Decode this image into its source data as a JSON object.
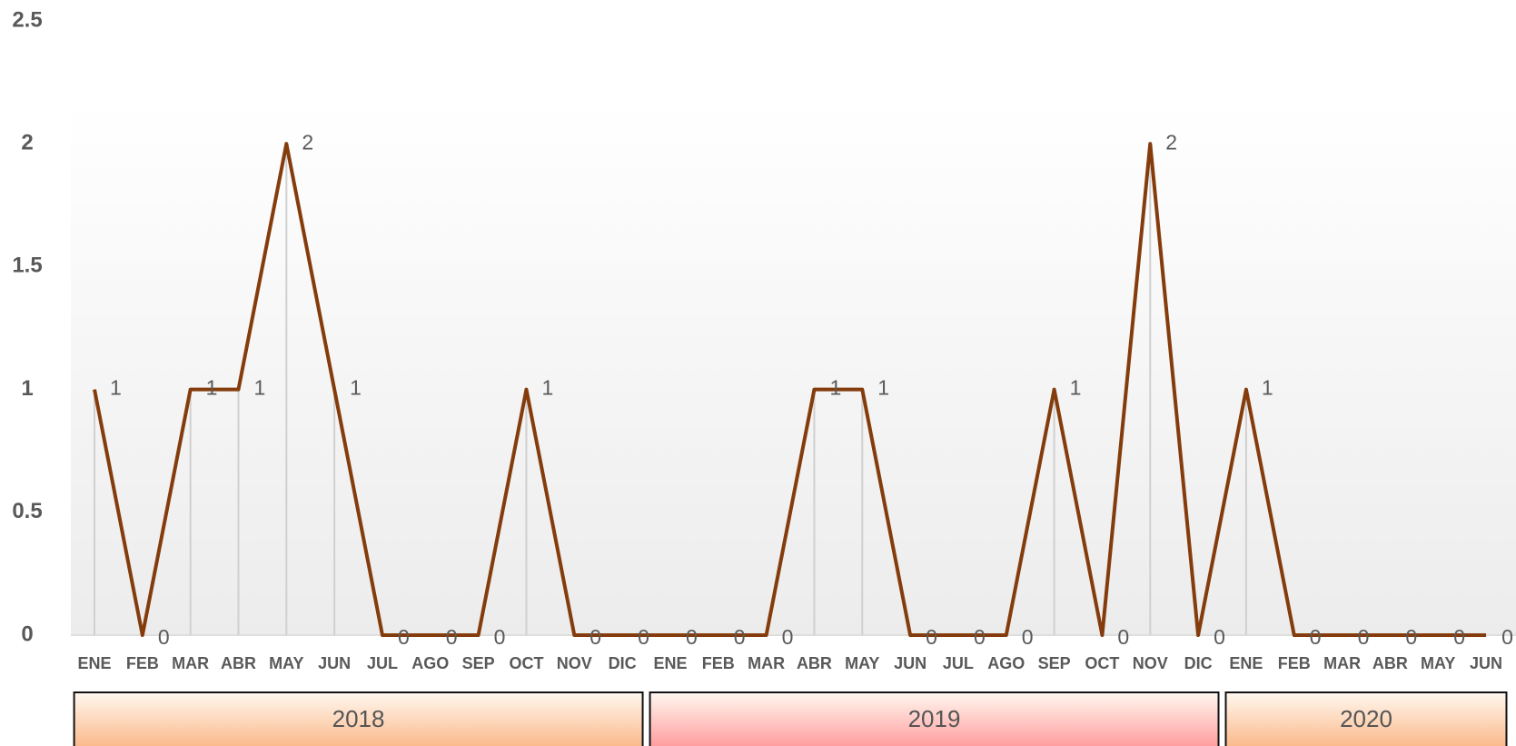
{
  "chart_data": {
    "type": "line",
    "color": "#843c0c",
    "ylim": [
      0,
      2.5
    ],
    "yticks": [
      0,
      0.5,
      1,
      1.5,
      2,
      2.5
    ],
    "drop_lines": true,
    "groups": [
      {
        "label": "2018",
        "color": "#fbb98a",
        "categories": [
          "ENE",
          "FEB",
          "MAR",
          "ABR",
          "MAY",
          "JUN",
          "JUL",
          "AGO",
          "SEP",
          "OCT",
          "NOV",
          "DIC"
        ],
        "values": [
          1,
          0,
          1,
          1,
          2,
          1,
          0,
          0,
          0,
          1,
          0,
          0
        ]
      },
      {
        "label": "2019",
        "color": "#ff9d9d",
        "categories": [
          "ENE",
          "FEB",
          "MAR",
          "ABR",
          "MAY",
          "JUN",
          "JUL",
          "AGO",
          "SEP",
          "OCT",
          "NOV",
          "DIC"
        ],
        "values": [
          0,
          0,
          0,
          1,
          1,
          0,
          0,
          0,
          1,
          0,
          2,
          0
        ]
      },
      {
        "label": "2020",
        "color": "#fbb98a",
        "categories": [
          "ENE",
          "FEB",
          "MAR",
          "ABR",
          "MAY",
          "JUN"
        ],
        "values": [
          1,
          0,
          0,
          0,
          0,
          0
        ]
      }
    ]
  }
}
